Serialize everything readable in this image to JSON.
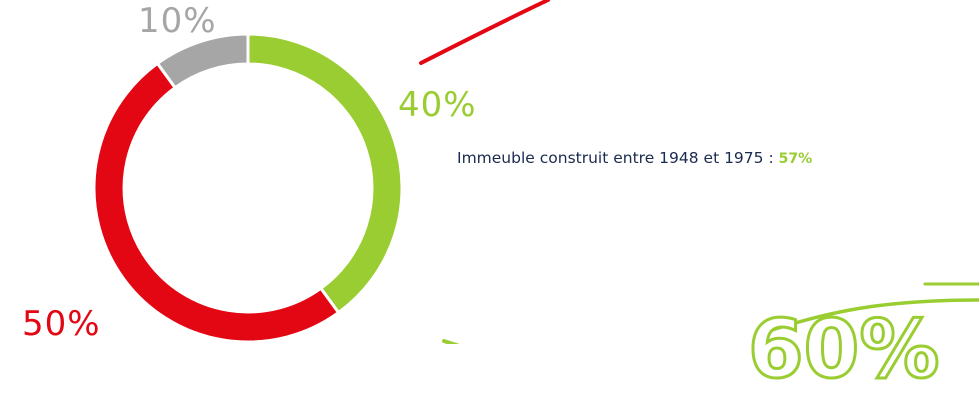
{
  "chart_data": {
    "type": "pie",
    "variant": "donut",
    "slices": [
      {
        "label": "40%",
        "value": 40,
        "color": "#9ACD32"
      },
      {
        "label": "50%",
        "value": 50,
        "color": "#E30613"
      },
      {
        "label": "10%",
        "value": 10,
        "color": "#A6A6A6"
      }
    ],
    "title": "",
    "legend": "none"
  },
  "caption": {
    "text": "Immeuble construit entre 1948 et 1975 : ",
    "value": "57%",
    "value_color": "#9ACD32"
  },
  "cropped_text": "60%"
}
